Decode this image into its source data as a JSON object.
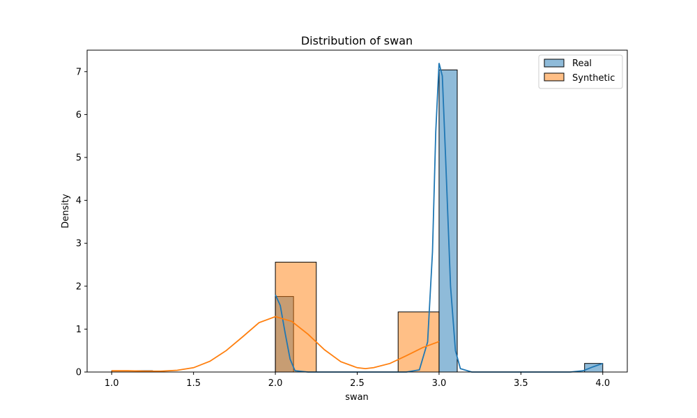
{
  "chart_data": {
    "type": "bar",
    "title": "Distribution of swan",
    "xlabel": "swan",
    "ylabel": "Density",
    "xlim": [
      0.85,
      4.15
    ],
    "ylim": [
      0,
      7.5
    ],
    "xticks": [
      "1.0",
      "1.5",
      "2.0",
      "2.5",
      "3.0",
      "3.5",
      "4.0"
    ],
    "yticks": [
      "0",
      "1",
      "2",
      "3",
      "4",
      "5",
      "6",
      "7"
    ],
    "grid": false,
    "legend_position": "top-right",
    "series": [
      {
        "name": "Real",
        "color": "#1f77b4",
        "bin_width": 0.111,
        "bins": [
          {
            "x0": 2.0,
            "density": 1.76
          },
          {
            "x0": 2.111,
            "density": 0.0
          },
          {
            "x0": 2.222,
            "density": 0.0
          },
          {
            "x0": 2.333,
            "density": 0.0
          },
          {
            "x0": 2.444,
            "density": 0.0
          },
          {
            "x0": 2.556,
            "density": 0.0
          },
          {
            "x0": 2.667,
            "density": 0.0
          },
          {
            "x0": 2.778,
            "density": 0.0
          },
          {
            "x0": 2.889,
            "density": 0.0
          },
          {
            "x0": 3.0,
            "density": 7.04
          },
          {
            "x0": 3.111,
            "density": 0.0
          },
          {
            "x0": 3.222,
            "density": 0.0
          },
          {
            "x0": 3.333,
            "density": 0.0
          },
          {
            "x0": 3.444,
            "density": 0.0
          },
          {
            "x0": 3.556,
            "density": 0.0
          },
          {
            "x0": 3.667,
            "density": 0.0
          },
          {
            "x0": 3.778,
            "density": 0.0
          },
          {
            "x0": 3.889,
            "density": 0.2
          }
        ],
        "kde": [
          [
            2.0,
            1.8
          ],
          [
            2.03,
            1.55
          ],
          [
            2.06,
            0.9
          ],
          [
            2.09,
            0.3
          ],
          [
            2.12,
            0.03
          ],
          [
            2.2,
            0.0
          ],
          [
            2.8,
            0.0
          ],
          [
            2.88,
            0.05
          ],
          [
            2.93,
            0.7
          ],
          [
            2.96,
            2.8
          ],
          [
            2.98,
            5.6
          ],
          [
            3.0,
            7.2
          ],
          [
            3.02,
            6.9
          ],
          [
            3.04,
            5.0
          ],
          [
            3.07,
            2.0
          ],
          [
            3.1,
            0.5
          ],
          [
            3.13,
            0.08
          ],
          [
            3.2,
            0.0
          ],
          [
            3.8,
            0.0
          ],
          [
            3.88,
            0.03
          ],
          [
            3.94,
            0.12
          ],
          [
            4.0,
            0.2
          ]
        ]
      },
      {
        "name": "Synthetic",
        "color": "#ff7f0e",
        "bin_width": 0.25,
        "bins": [
          {
            "x0": 1.0,
            "density": 0.03
          },
          {
            "x0": 1.25,
            "density": 0.0
          },
          {
            "x0": 1.5,
            "density": 0.0
          },
          {
            "x0": 1.75,
            "density": 0.0
          },
          {
            "x0": 2.0,
            "density": 2.56
          },
          {
            "x0": 2.25,
            "density": 0.0
          },
          {
            "x0": 2.5,
            "density": 0.0
          },
          {
            "x0": 2.75,
            "density": 1.4
          }
        ],
        "kde": [
          [
            1.0,
            0.03
          ],
          [
            1.1,
            0.03
          ],
          [
            1.2,
            0.02
          ],
          [
            1.3,
            0.02
          ],
          [
            1.4,
            0.04
          ],
          [
            1.5,
            0.1
          ],
          [
            1.6,
            0.25
          ],
          [
            1.7,
            0.5
          ],
          [
            1.8,
            0.82
          ],
          [
            1.9,
            1.15
          ],
          [
            2.0,
            1.29
          ],
          [
            2.1,
            1.18
          ],
          [
            2.2,
            0.88
          ],
          [
            2.3,
            0.52
          ],
          [
            2.4,
            0.24
          ],
          [
            2.5,
            0.1
          ],
          [
            2.55,
            0.08
          ],
          [
            2.6,
            0.1
          ],
          [
            2.7,
            0.2
          ],
          [
            2.8,
            0.38
          ],
          [
            2.9,
            0.57
          ],
          [
            3.0,
            0.71
          ]
        ]
      }
    ]
  }
}
